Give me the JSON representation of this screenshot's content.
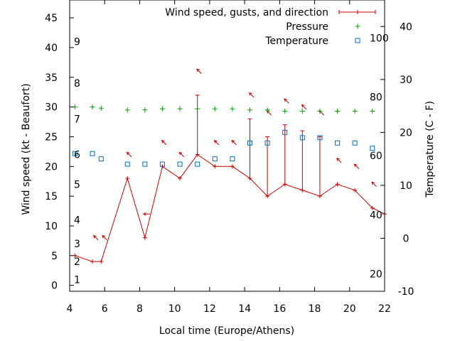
{
  "chart_data": {
    "type": "line",
    "title": "",
    "xlabel": "Local time (Europe/Athens)",
    "ylabel_left": "Wind speed (kt - Beaufort)",
    "ylabel_right": "Temperature (C - F)",
    "xlim": [
      4,
      22
    ],
    "ylim_left": [
      -1,
      48
    ],
    "ylim_right": [
      -10,
      45
    ],
    "grid": false,
    "legend_position": "top-right",
    "x_ticks": [
      4,
      6,
      8,
      10,
      12,
      14,
      16,
      18,
      20,
      22
    ],
    "y_left_ticks": [
      0,
      5,
      10,
      15,
      20,
      25,
      30,
      35,
      40,
      45
    ],
    "y_right_ticks": [
      -10,
      0,
      10,
      20,
      30,
      40
    ],
    "beaufort_labels": [
      {
        "text": "1",
        "at_kt": 1
      },
      {
        "text": "2",
        "at_kt": 4
      },
      {
        "text": "3",
        "at_kt": 7
      },
      {
        "text": "4",
        "at_kt": 11
      },
      {
        "text": "5",
        "at_kt": 17
      },
      {
        "text": "6",
        "at_kt": 22
      },
      {
        "text": "7",
        "at_kt": 28
      },
      {
        "text": "8",
        "at_kt": 34
      },
      {
        "text": "9",
        "at_kt": 41
      }
    ],
    "fahrenheit_labels": [
      {
        "text": "20",
        "at_c": -6.7
      },
      {
        "text": "40",
        "at_c": 4.4
      },
      {
        "text": "60",
        "at_c": 15.6
      },
      {
        "text": "80",
        "at_c": 26.7
      },
      {
        "text": "100",
        "at_c": 37.8
      }
    ],
    "series": [
      {
        "name": "Wind speed, gusts, and direction",
        "color": "#cc0000",
        "axis": "left",
        "points": [
          {
            "x": 4.3,
            "y": 5,
            "gust": 5
          },
          {
            "x": 5.3,
            "y": 4,
            "gust": 4
          },
          {
            "x": 5.8,
            "y": 4,
            "gust": 4
          },
          {
            "x": 7.3,
            "y": 18,
            "gust": 18
          },
          {
            "x": 8.3,
            "y": 8,
            "gust": 8
          },
          {
            "x": 9.3,
            "y": 20,
            "gust": 20
          },
          {
            "x": 10.3,
            "y": 18,
            "gust": 18
          },
          {
            "x": 11.3,
            "y": 22,
            "gust": 32
          },
          {
            "x": 12.3,
            "y": 20,
            "gust": 20
          },
          {
            "x": 13.3,
            "y": 20,
            "gust": 20
          },
          {
            "x": 14.3,
            "y": 18,
            "gust": 28
          },
          {
            "x": 15.3,
            "y": 15,
            "gust": 25
          },
          {
            "x": 16.3,
            "y": 17,
            "gust": 27
          },
          {
            "x": 17.3,
            "y": 16,
            "gust": 26
          },
          {
            "x": 18.3,
            "y": 15,
            "gust": 25
          },
          {
            "x": 19.3,
            "y": 17,
            "gust": 17
          },
          {
            "x": 20.3,
            "y": 16,
            "gust": 16
          },
          {
            "x": 21.3,
            "y": 13,
            "gust": 13
          },
          {
            "x": 22,
            "y": 12,
            "gust": 12
          }
        ]
      },
      {
        "name": "Pressure",
        "color": "#00a000",
        "axis": "left",
        "points": [
          {
            "x": 4.3,
            "y": 30
          },
          {
            "x": 5.3,
            "y": 30
          },
          {
            "x": 5.8,
            "y": 29.8
          },
          {
            "x": 7.3,
            "y": 29.5
          },
          {
            "x": 8.3,
            "y": 29.5
          },
          {
            "x": 9.3,
            "y": 29.7
          },
          {
            "x": 10.3,
            "y": 29.7
          },
          {
            "x": 11.3,
            "y": 29.7
          },
          {
            "x": 12.3,
            "y": 29.7
          },
          {
            "x": 13.3,
            "y": 29.7
          },
          {
            "x": 14.3,
            "y": 29.5
          },
          {
            "x": 15.3,
            "y": 29.5
          },
          {
            "x": 16.3,
            "y": 29.3
          },
          {
            "x": 17.3,
            "y": 29.3
          },
          {
            "x": 18.3,
            "y": 29.3
          },
          {
            "x": 19.3,
            "y": 29.3
          },
          {
            "x": 20.3,
            "y": 29.3
          },
          {
            "x": 21.3,
            "y": 29.3
          }
        ]
      },
      {
        "name": "Temperature",
        "color": "#0070c0",
        "axis": "right",
        "points": [
          {
            "x": 4.3,
            "y": 16
          },
          {
            "x": 5.3,
            "y": 16
          },
          {
            "x": 5.8,
            "y": 15
          },
          {
            "x": 7.3,
            "y": 14
          },
          {
            "x": 8.3,
            "y": 14
          },
          {
            "x": 9.3,
            "y": 14
          },
          {
            "x": 10.3,
            "y": 14
          },
          {
            "x": 11.3,
            "y": 14
          },
          {
            "x": 12.3,
            "y": 15
          },
          {
            "x": 13.3,
            "y": 15
          },
          {
            "x": 14.3,
            "y": 18
          },
          {
            "x": 15.3,
            "y": 18
          },
          {
            "x": 16.3,
            "y": 20
          },
          {
            "x": 17.3,
            "y": 19
          },
          {
            "x": 18.3,
            "y": 19
          },
          {
            "x": 19.3,
            "y": 18
          },
          {
            "x": 20.3,
            "y": 18
          },
          {
            "x": 21.3,
            "y": 17
          }
        ]
      }
    ],
    "wind_direction_arrows": [
      {
        "x": 5.5,
        "kt": 8,
        "toward": "NW"
      },
      {
        "x": 6.0,
        "kt": 8,
        "toward": "NW"
      },
      {
        "x": 7.4,
        "kt": 22,
        "toward": "NW"
      },
      {
        "x": 8.4,
        "kt": 12,
        "toward": "W"
      },
      {
        "x": 9.4,
        "kt": 24,
        "toward": "NW"
      },
      {
        "x": 10.4,
        "kt": 22,
        "toward": "NW"
      },
      {
        "x": 11.4,
        "kt": 36,
        "toward": "NW"
      },
      {
        "x": 12.4,
        "kt": 24,
        "toward": "NW"
      },
      {
        "x": 13.4,
        "kt": 24,
        "toward": "NW"
      },
      {
        "x": 14.4,
        "kt": 32,
        "toward": "NW"
      },
      {
        "x": 15.4,
        "kt": 29,
        "toward": "NW"
      },
      {
        "x": 16.4,
        "kt": 31,
        "toward": "NW"
      },
      {
        "x": 17.4,
        "kt": 30,
        "toward": "NW"
      },
      {
        "x": 18.4,
        "kt": 29,
        "toward": "NW"
      },
      {
        "x": 19.4,
        "kt": 21,
        "toward": "NW"
      },
      {
        "x": 20.4,
        "kt": 20,
        "toward": "NW"
      },
      {
        "x": 21.4,
        "kt": 17,
        "toward": "NW"
      }
    ]
  }
}
